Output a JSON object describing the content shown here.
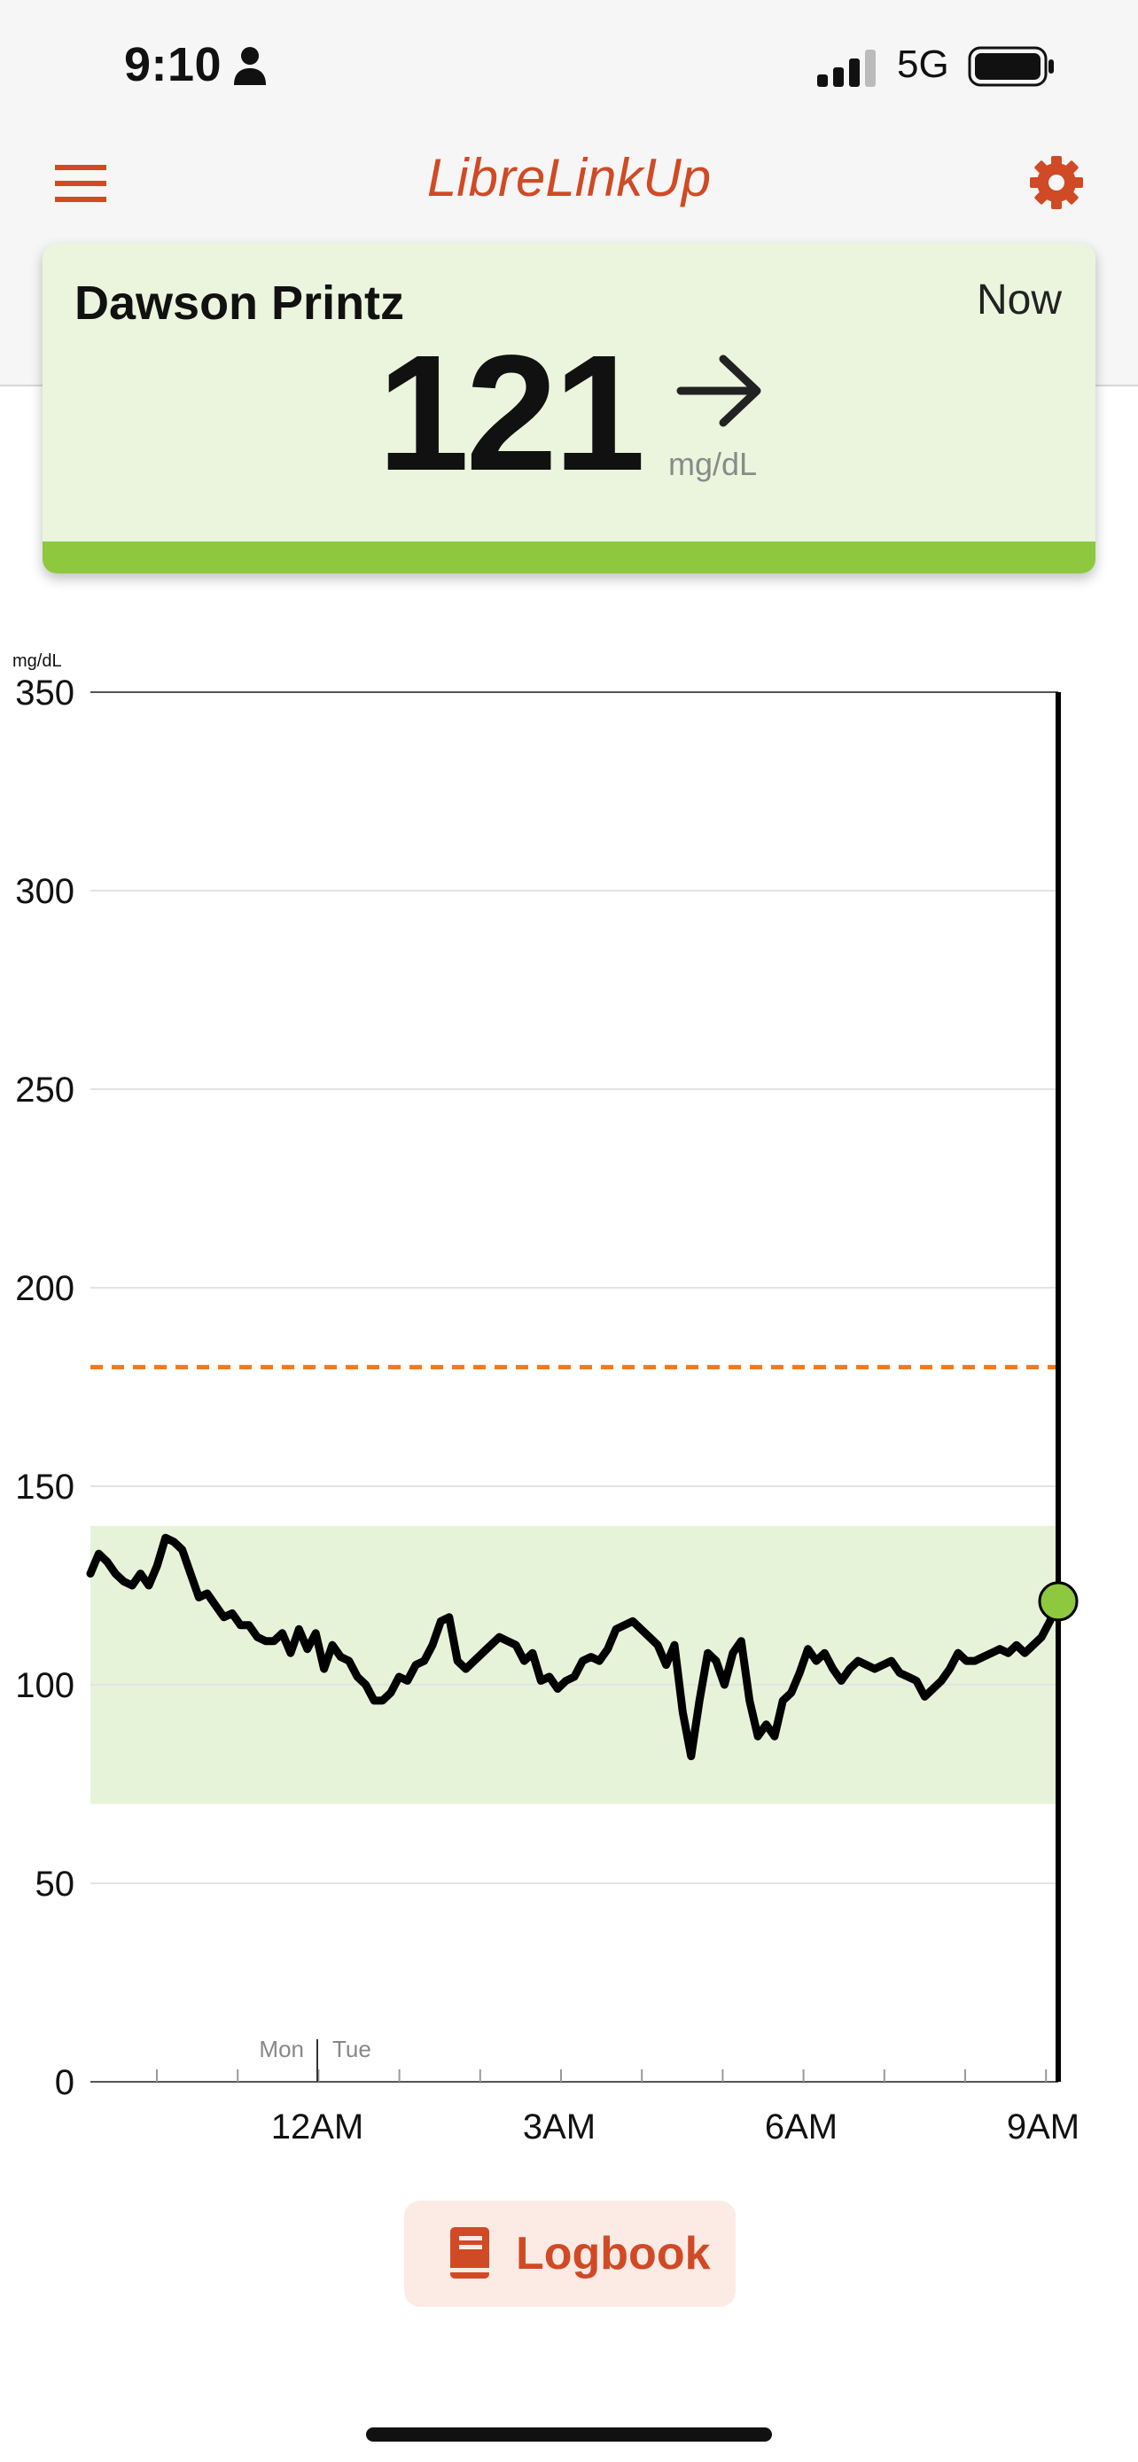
{
  "status_bar": {
    "time": "9:10",
    "network": "5G"
  },
  "nav": {
    "title": "LibreLinkUp",
    "menu_icon": "hamburger-menu-icon",
    "settings_icon": "gear-icon"
  },
  "patient": {
    "name": "Dawson Printz",
    "time": "Now",
    "glucose": "121",
    "unit": "mg/dL",
    "trend_icon": "right-arrow-icon",
    "status_color": "#8dc83f"
  },
  "chart_data": {
    "type": "line",
    "ylabel": "mg/dL",
    "ylim": [
      0,
      350
    ],
    "yticks": [
      0,
      50,
      100,
      150,
      200,
      250,
      300,
      350
    ],
    "x_tick_labels": [
      "12AM",
      "3AM",
      "6AM",
      "9AM"
    ],
    "day_labels": [
      "Mon",
      "Tue"
    ],
    "target_range": [
      70,
      140
    ],
    "high_threshold": 180,
    "grid": true,
    "colors": {
      "line": "#000000",
      "target_band": "#e6f3d8",
      "threshold": "#ef7a1e",
      "current_point": "#8dc83f"
    },
    "series": [
      {
        "values": [
          128,
          133,
          131,
          128,
          126,
          125,
          128,
          125,
          130,
          137,
          136,
          134,
          128,
          122,
          123,
          120,
          117,
          118,
          115,
          115,
          112,
          111,
          111,
          113,
          108,
          114,
          109,
          113,
          104,
          110,
          107,
          106,
          102,
          100,
          96,
          96,
          98,
          102,
          101,
          105,
          106,
          110,
          116,
          117,
          106,
          104,
          106,
          108,
          110,
          112,
          111,
          110,
          106,
          108,
          101,
          102,
          99,
          101,
          102,
          106,
          107,
          106,
          109,
          114,
          115,
          116,
          114,
          112,
          110,
          105,
          110,
          93,
          82,
          96,
          108,
          106,
          100,
          108,
          111,
          96,
          87,
          90,
          87,
          96,
          98,
          103,
          109,
          106,
          108,
          104,
          101,
          104,
          106,
          105,
          104,
          105,
          106,
          103,
          102,
          101,
          97,
          99,
          101,
          104,
          108,
          106,
          106,
          107,
          108,
          109,
          108,
          110,
          108,
          110,
          112,
          116,
          121
        ],
        "current": 121
      }
    ]
  },
  "logbook": {
    "label": "Logbook",
    "icon": "book-icon"
  }
}
